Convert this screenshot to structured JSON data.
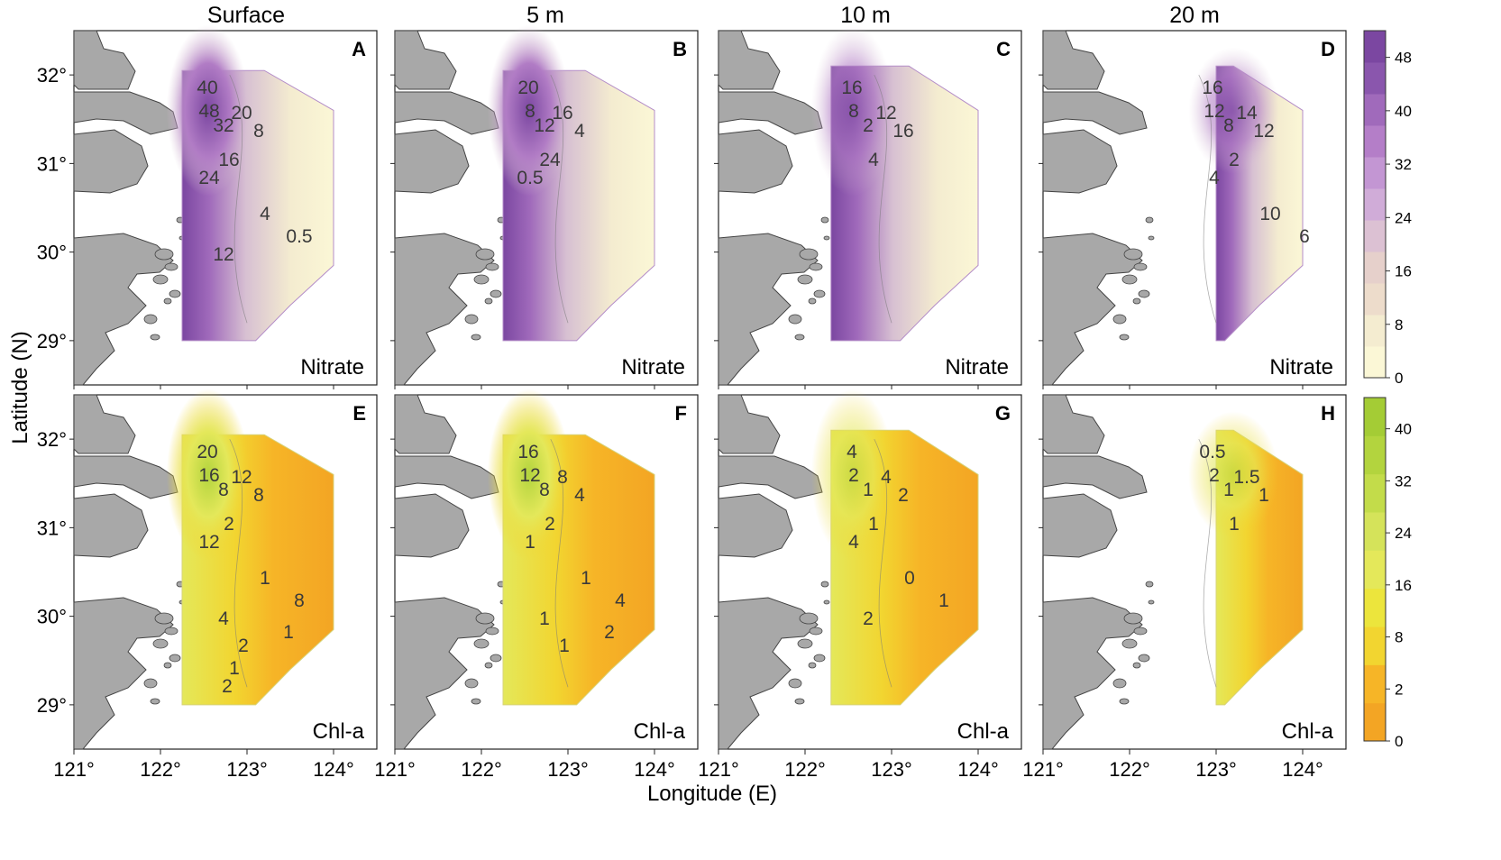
{
  "figure": {
    "columns": [
      "Surface",
      "5 m",
      "10 m",
      "20 m"
    ],
    "x_axis_label": "Longitude (E)",
    "y_axis_label": "Latitude (N)",
    "lon_ticks": [
      "121°",
      "122°",
      "123°",
      "124°"
    ],
    "lat_ticks": [
      "29°",
      "30°",
      "31°",
      "32°"
    ],
    "lon_range": [
      121,
      124.5
    ],
    "lat_range": [
      28.5,
      32.5
    ]
  },
  "panels": [
    {
      "id": "A",
      "row": 0,
      "col": 0,
      "variable": "Nitrate",
      "scheme": "nitrate",
      "labels": [
        "40",
        "20",
        "48",
        "32",
        "8",
        "16",
        "24",
        "4",
        "0.5",
        "12"
      ]
    },
    {
      "id": "B",
      "row": 0,
      "col": 1,
      "variable": "Nitrate",
      "scheme": "nitrate",
      "labels": [
        "20",
        "16",
        "8",
        "12",
        "4",
        "24",
        "0.5"
      ]
    },
    {
      "id": "C",
      "row": 0,
      "col": 2,
      "variable": "Nitrate",
      "scheme": "nitrate",
      "labels": [
        "16",
        "12",
        "8",
        "2",
        "16",
        "4"
      ]
    },
    {
      "id": "D",
      "row": 0,
      "col": 3,
      "variable": "Nitrate",
      "scheme": "nitrate",
      "labels": [
        "16",
        "14",
        "12",
        "8",
        "12",
        "2",
        "4",
        "10",
        "6"
      ]
    },
    {
      "id": "E",
      "row": 1,
      "col": 0,
      "variable": "Chl-a",
      "scheme": "chl",
      "labels": [
        "20",
        "12",
        "16",
        "8",
        "8",
        "2",
        "12",
        "1",
        "8",
        "4",
        "2",
        "1",
        "1",
        "2"
      ]
    },
    {
      "id": "F",
      "row": 1,
      "col": 1,
      "variable": "Chl-a",
      "scheme": "chl",
      "labels": [
        "16",
        "8",
        "12",
        "8",
        "4",
        "2",
        "1",
        "1",
        "4",
        "1",
        "1",
        "2"
      ]
    },
    {
      "id": "G",
      "row": 1,
      "col": 2,
      "variable": "Chl-a",
      "scheme": "chl",
      "labels": [
        "4",
        "4",
        "2",
        "1",
        "2",
        "1",
        "4",
        "0",
        "1",
        "2"
      ]
    },
    {
      "id": "H",
      "row": 1,
      "col": 3,
      "variable": "Chl-a",
      "scheme": "chl",
      "labels": [
        "0.5",
        "1.5",
        "2",
        "1",
        "1",
        "1"
      ]
    }
  ],
  "colorbars": [
    {
      "scheme": "nitrate",
      "tick_labels": [
        "0",
        "8",
        "16",
        "24",
        "32",
        "40",
        "48"
      ],
      "tick_values": [
        0,
        8,
        16,
        24,
        32,
        40,
        48
      ],
      "max": 52,
      "colors": [
        "#fbf7d6",
        "#f4ecd0",
        "#eddccb",
        "#e6d0cb",
        "#dcc1d3",
        "#d0acd8",
        "#c396d3",
        "#b47ec8",
        "#a06abb",
        "#8a56ad",
        "#7b47a1"
      ]
    },
    {
      "scheme": "chl",
      "tick_labels": [
        "0",
        "2",
        "8",
        "16",
        "24",
        "32",
        "40"
      ],
      "tick_values": [
        0,
        1,
        2,
        3,
        4,
        5,
        6
      ],
      "max": 6.6,
      "colors": [
        "#f3a524",
        "#f6b527",
        "#f2d530",
        "#ece53c",
        "#e4e85a",
        "#d5e35a",
        "#c3dc4a",
        "#b3d43e",
        "#a4cc35"
      ]
    }
  ],
  "legend": {
    "nitrate_colors": {
      "outer": "#fbf7d6",
      "mid": "#e8d4cc",
      "inner": "#c39bd2",
      "core": "#7e4aa3"
    },
    "chl_colors": {
      "outer": "#f3a524",
      "mid": "#f2d530",
      "inner": "#e4e85a",
      "core": "#b3d43e"
    }
  }
}
